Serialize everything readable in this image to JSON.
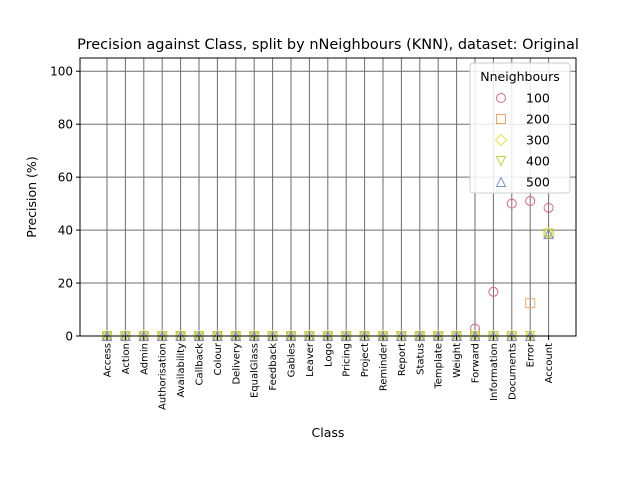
{
  "chart_data": {
    "type": "scatter",
    "title": "Precision against Class, split by nNeighbours (KNN), dataset: Original",
    "xlabel": "Class",
    "ylabel": "Precision (%)",
    "ylim": [
      0,
      105
    ],
    "yticks": [
      0,
      20,
      40,
      60,
      80,
      100
    ],
    "grid": true,
    "legend_title": "Nneighbours",
    "legend_position": "top-right",
    "categories": [
      "Access",
      "Action",
      "Admin",
      "Authorisation",
      "Availability",
      "Callback",
      "Colour",
      "Delivery",
      "EqualGlass",
      "Feedback",
      "Gables",
      "Leaver",
      "Logo",
      "Pricing",
      "Project",
      "Reminder",
      "Report",
      "Status",
      "Template",
      "Weight",
      "Forward",
      "Information",
      "Documents",
      "Error",
      "Account"
    ],
    "series": [
      {
        "name": "100",
        "marker": "circle",
        "color": "#e0608a",
        "values": [
          0,
          0,
          0,
          0,
          0,
          0,
          0,
          0,
          0,
          0,
          0,
          0,
          0,
          0,
          0,
          0,
          0,
          0,
          0,
          0,
          2.8,
          16.7,
          50,
          51,
          48.4
        ]
      },
      {
        "name": "200",
        "marker": "square",
        "color": "#f4a460",
        "values": [
          0,
          0,
          0,
          0,
          0,
          0,
          0,
          0,
          0,
          0,
          0,
          0,
          0,
          0,
          0,
          0,
          0,
          0,
          0,
          0,
          0,
          0,
          0,
          12.4,
          38.7
        ]
      },
      {
        "name": "300",
        "marker": "diamond",
        "color": "#f0e442",
        "values": [
          0,
          0,
          0,
          0,
          0,
          0,
          0,
          0,
          0,
          0,
          0,
          0,
          0,
          0,
          0,
          0,
          0,
          0,
          0,
          0,
          0,
          0,
          0,
          0,
          38.7
        ]
      },
      {
        "name": "400",
        "marker": "triangle-down",
        "color": "#b5d940",
        "values": [
          0,
          0,
          0,
          0,
          0,
          0,
          0,
          0,
          0,
          0,
          0,
          0,
          0,
          0,
          0,
          0,
          0,
          0,
          0,
          0,
          0,
          0,
          0,
          0,
          38.5
        ]
      },
      {
        "name": "500",
        "marker": "triangle-up",
        "color": "#7b8fd6",
        "values": [
          0,
          0,
          0,
          0,
          0,
          0,
          0,
          0,
          0,
          0,
          0,
          0,
          0,
          0,
          0,
          0,
          0,
          0,
          0,
          0,
          0,
          0,
          0,
          0,
          38.5
        ]
      }
    ]
  }
}
